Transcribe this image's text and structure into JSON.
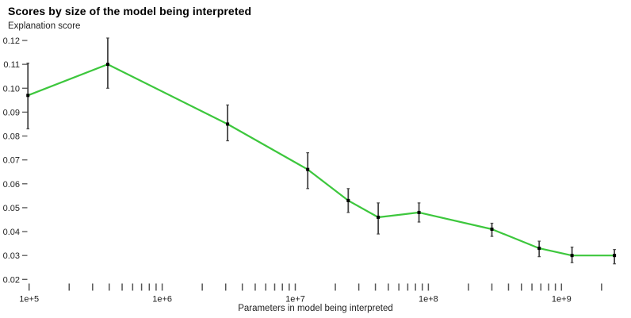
{
  "chart_data": {
    "type": "line",
    "title": "Scores by size of the model being interpreted",
    "ylabel": "Explanation score",
    "xlabel": "Parameters in model being interpreted",
    "x_scale": "log",
    "x_range": [
      98000,
      2800000000
    ],
    "y_range": [
      0.02,
      0.122
    ],
    "grid": false,
    "legend": false,
    "y_ticks": [
      0.02,
      0.03,
      0.04,
      0.05,
      0.06,
      0.07,
      0.08,
      0.09,
      0.1,
      0.11,
      0.12
    ],
    "x_ticks": [
      {
        "value": 100000,
        "label": "1e+5"
      },
      {
        "value": 1000000,
        "label": "1e+6"
      },
      {
        "value": 10000000,
        "label": "1e+7"
      },
      {
        "value": 100000000,
        "label": "1e+8"
      },
      {
        "value": 1000000000,
        "label": "1e+9"
      }
    ],
    "colors": {
      "line": "#3dc73d",
      "error_bar": "#444444",
      "marker": "#000000",
      "tick_mark": "#555555",
      "tick_label": "#222222"
    },
    "series": [
      {
        "name": "Explanation score",
        "points": [
          {
            "x": 98000,
            "y": 0.097,
            "y_low": 0.083,
            "y_high": 0.1105
          },
          {
            "x": 390000,
            "y": 0.11,
            "y_low": 0.1,
            "y_high": 0.121
          },
          {
            "x": 3100000,
            "y": 0.085,
            "y_low": 0.078,
            "y_high": 0.093
          },
          {
            "x": 12400000,
            "y": 0.066,
            "y_low": 0.058,
            "y_high": 0.073
          },
          {
            "x": 25000000,
            "y": 0.053,
            "y_low": 0.048,
            "y_high": 0.058
          },
          {
            "x": 42000000,
            "y": 0.046,
            "y_low": 0.039,
            "y_high": 0.052
          },
          {
            "x": 85000000,
            "y": 0.048,
            "y_low": 0.044,
            "y_high": 0.052
          },
          {
            "x": 300000000,
            "y": 0.041,
            "y_low": 0.038,
            "y_high": 0.0435
          },
          {
            "x": 680000000,
            "y": 0.033,
            "y_low": 0.0295,
            "y_high": 0.036
          },
          {
            "x": 1200000000,
            "y": 0.03,
            "y_low": 0.027,
            "y_high": 0.0335
          },
          {
            "x": 2500000000,
            "y": 0.03,
            "y_low": 0.0265,
            "y_high": 0.0325
          }
        ]
      }
    ]
  }
}
